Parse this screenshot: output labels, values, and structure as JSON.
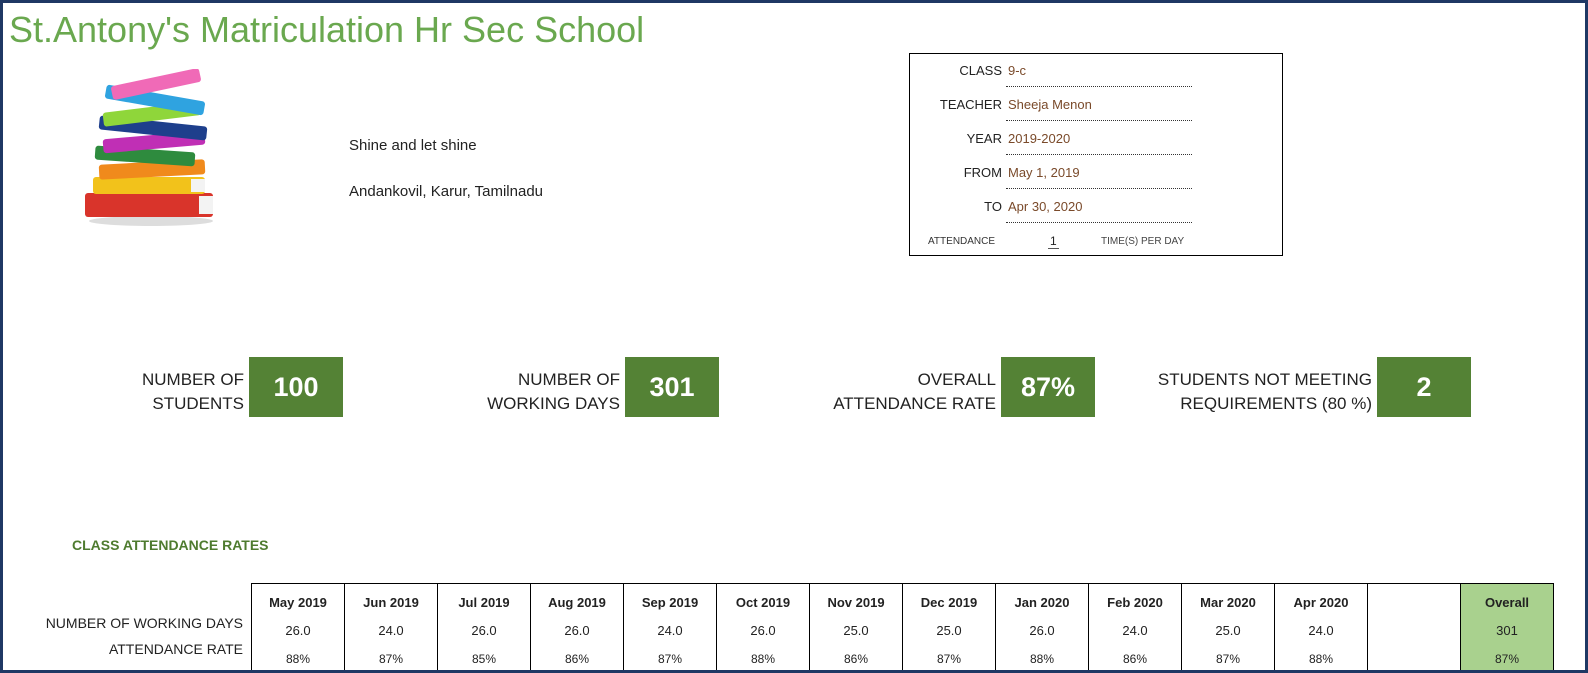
{
  "school": {
    "name": "St.Antony's Matriculation Hr Sec School",
    "motto": "Shine and let shine",
    "address": "Andankovil, Karur, Tamilnadu"
  },
  "info": {
    "rows": [
      {
        "label": "CLASS",
        "value": "9-c"
      },
      {
        "label": "TEACHER",
        "value": "Sheeja Menon"
      },
      {
        "label": "YEAR",
        "value": "2019-2020"
      },
      {
        "label": "FROM",
        "value": "May 1, 2019"
      },
      {
        "label": "TO",
        "value": "Apr 30, 2020"
      }
    ],
    "attendance_label": "ATTENDANCE",
    "attendance_value": "1",
    "attendance_unit": "TIME(S) PER DAY"
  },
  "kpis": [
    {
      "line1": "NUMBER OF",
      "line2": "STUDENTS",
      "value": "100"
    },
    {
      "line1": "NUMBER OF",
      "line2": "WORKING DAYS",
      "value": "301"
    },
    {
      "line1": "OVERALL",
      "line2": "ATTENDANCE RATE",
      "value": "87%"
    },
    {
      "line1": "STUDENTS NOT MEETING",
      "line2": "REQUIREMENTS (80 %)",
      "value": "2"
    }
  ],
  "section_title": "CLASS ATTENDANCE RATES",
  "table": {
    "row_labels": [
      "NUMBER OF WORKING DAYS",
      "ATTENDANCE RATE"
    ],
    "months": [
      {
        "month": "May 2019",
        "days": "26.0",
        "rate": "88%"
      },
      {
        "month": "Jun 2019",
        "days": "24.0",
        "rate": "87%"
      },
      {
        "month": "Jul 2019",
        "days": "26.0",
        "rate": "85%"
      },
      {
        "month": "Aug 2019",
        "days": "26.0",
        "rate": "86%"
      },
      {
        "month": "Sep 2019",
        "days": "24.0",
        "rate": "87%"
      },
      {
        "month": "Oct 2019",
        "days": "26.0",
        "rate": "88%"
      },
      {
        "month": "Nov 2019",
        "days": "25.0",
        "rate": "86%"
      },
      {
        "month": "Dec 2019",
        "days": "25.0",
        "rate": "87%"
      },
      {
        "month": "Jan 2020",
        "days": "26.0",
        "rate": "88%"
      },
      {
        "month": "Feb 2020",
        "days": "24.0",
        "rate": "86%"
      },
      {
        "month": "Mar 2020",
        "days": "25.0",
        "rate": "87%"
      },
      {
        "month": "Apr 2020",
        "days": "24.0",
        "rate": "88%"
      },
      {
        "month": "",
        "days": "",
        "rate": ""
      },
      {
        "month": "Overall",
        "days": "301",
        "rate": "87%"
      }
    ]
  },
  "colors": {
    "title_green": "#6aa84f",
    "kpi_green": "#548235",
    "overall_green": "#a9d18e",
    "frame_border": "#1f3864"
  },
  "icons": {
    "logo": "book-stack-icon"
  }
}
